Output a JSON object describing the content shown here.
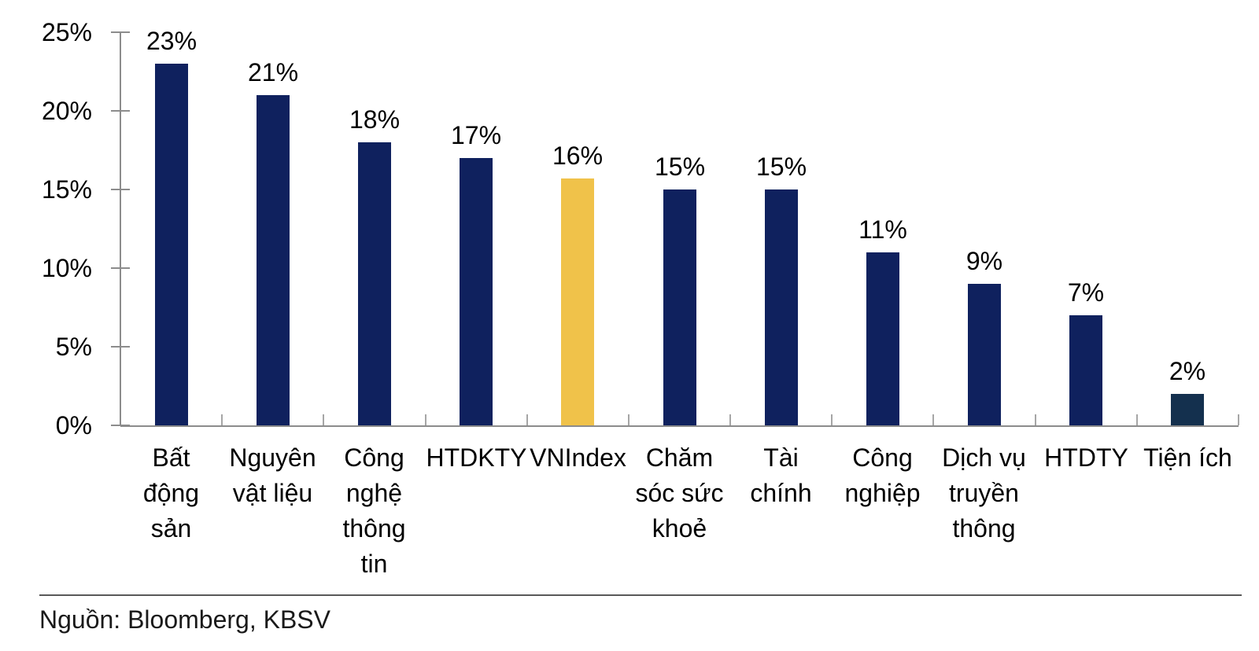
{
  "chart_data": {
    "type": "bar",
    "title": "",
    "xlabel": "",
    "ylabel": "",
    "categories": [
      "Bất động sản",
      "Nguyên vật liệu",
      "Công nghệ thông tin",
      "HTDKTY",
      "VNIndex",
      "Chăm sóc sức khoẻ",
      "Tài chính",
      "Công nghiệp",
      "Dịch vụ truyền thông",
      "HTDTY",
      "Tiện ích"
    ],
    "category_lines": [
      [
        "Bất",
        "động",
        "sản"
      ],
      [
        "Nguyên",
        "vật liệu"
      ],
      [
        "Công",
        "nghệ",
        "thông",
        "tin"
      ],
      [
        "HTDKTY"
      ],
      [
        "VNIndex"
      ],
      [
        "Chăm",
        "sóc sức",
        "khoẻ"
      ],
      [
        "Tài",
        "chính"
      ],
      [
        "Công",
        "nghiệp"
      ],
      [
        "Dịch vụ",
        "truyền",
        "thông"
      ],
      [
        "HTDTY"
      ],
      [
        "Tiện ích"
      ]
    ],
    "values": [
      23,
      21,
      18,
      17,
      15.7,
      15,
      15,
      11,
      9,
      7,
      2
    ],
    "labels": [
      "23%",
      "21%",
      "18%",
      "17%",
      "16%",
      "15%",
      "15%",
      "11%",
      "9%",
      "7%",
      "2%"
    ],
    "ylim": [
      0,
      25
    ],
    "yticks": [
      0,
      5,
      10,
      15,
      20,
      25
    ],
    "ytick_labels": [
      "0%",
      "5%",
      "10%",
      "15%",
      "20%",
      "25%"
    ],
    "grid": false,
    "legend": "none",
    "highlight_category": "VNIndex",
    "bar_colors": [
      "#0f215e",
      "#0f215e",
      "#0f215e",
      "#0f215e",
      "#f0c24a",
      "#0f215e",
      "#0f215e",
      "#0f215e",
      "#0f215e",
      "#0f215e",
      "#14304e"
    ]
  },
  "colors": {
    "bar_navy": "#0f215e",
    "bar_highlight": "#f0c24a",
    "bar_utilities": "#14304e",
    "axis": "#8c8c8c",
    "boundary_tick": "#a6a6a6",
    "divider": "#595959",
    "text": "#000000"
  },
  "footer": {
    "source_label": "Nguồn: Bloomberg, KBSV"
  }
}
